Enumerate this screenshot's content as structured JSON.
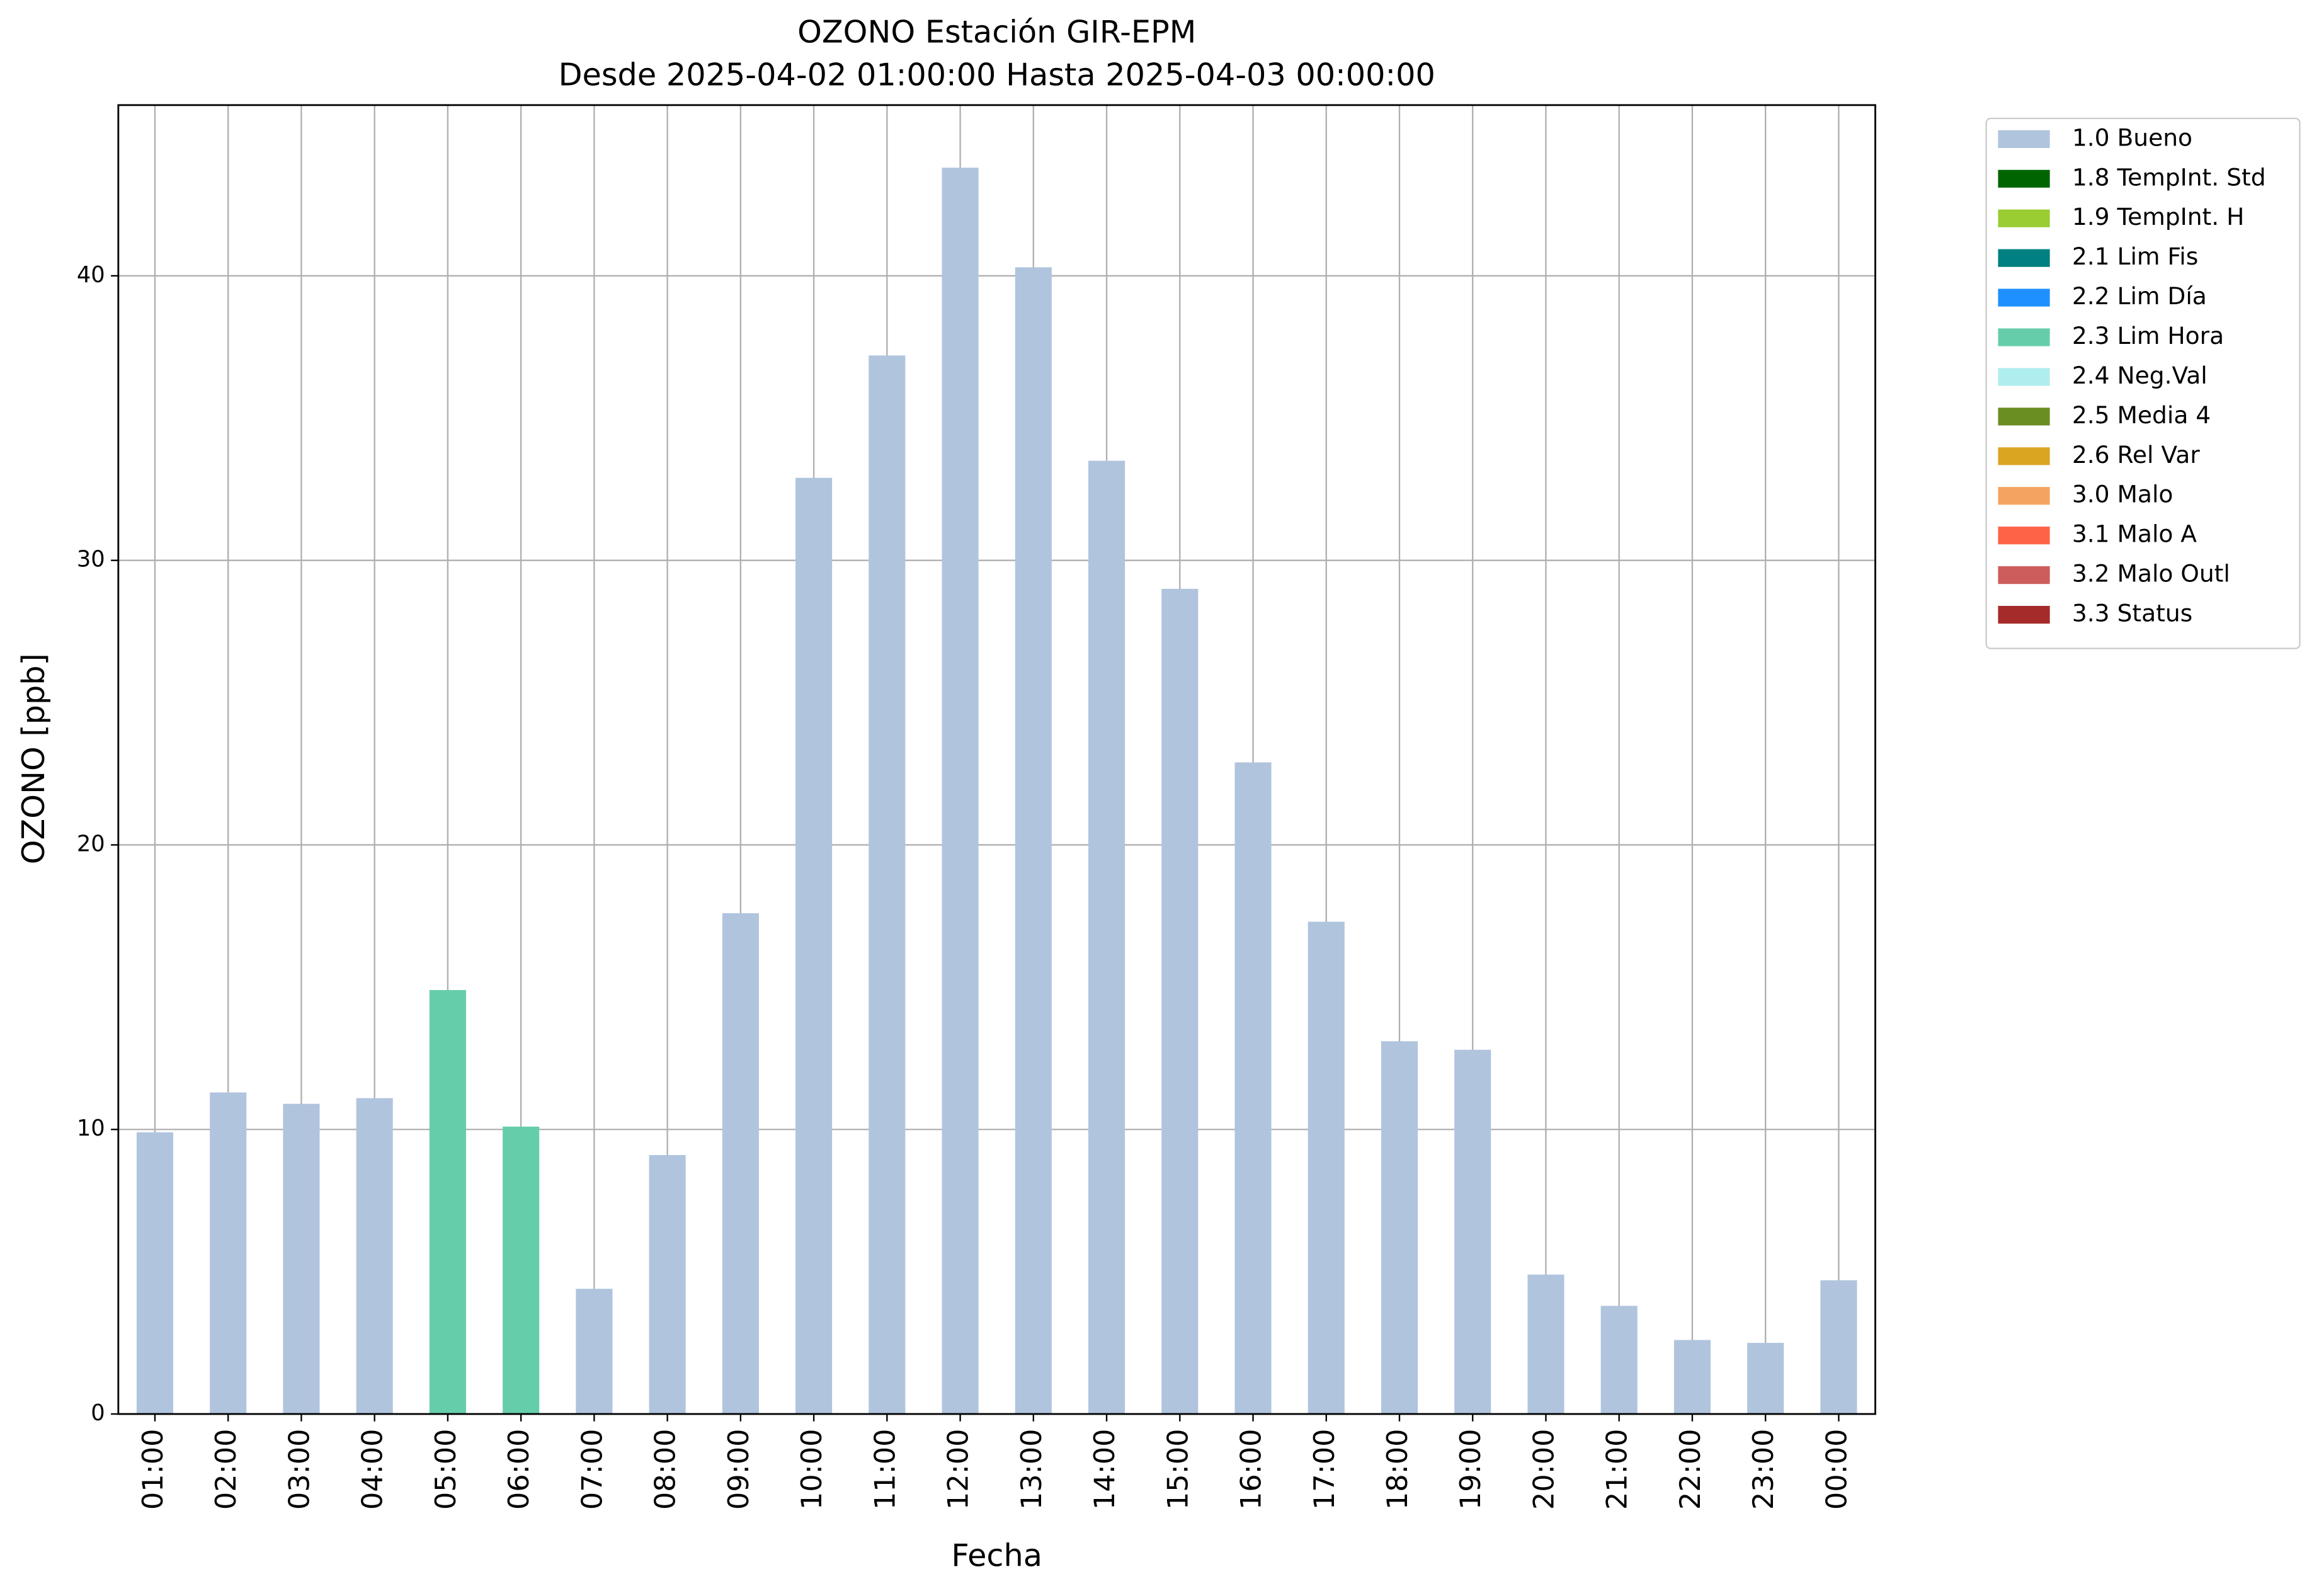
{
  "chart_data": {
    "type": "bar",
    "stacked": true,
    "title": "OZONO Estación GIR-EPM",
    "subtitle": "Desde 2025-04-02 01:00:00 Hasta 2025-04-03 00:00:00",
    "x_label": "Fecha",
    "y_label": "OZONO [ppb]",
    "categories": [
      "01:00",
      "02:00",
      "03:00",
      "04:00",
      "05:00",
      "06:00",
      "07:00",
      "08:00",
      "09:00",
      "10:00",
      "11:00",
      "12:00",
      "13:00",
      "14:00",
      "15:00",
      "16:00",
      "17:00",
      "18:00",
      "19:00",
      "20:00",
      "21:00",
      "22:00",
      "23:00",
      "00:00"
    ],
    "series": [
      {
        "name": "1.0 Bueno",
        "color": "#b0c4de",
        "values": [
          9.9,
          11.3,
          10.9,
          11.1,
          null,
          null,
          4.4,
          9.1,
          17.6,
          32.9,
          37.2,
          43.8,
          40.3,
          33.5,
          29.0,
          22.9,
          17.3,
          13.1,
          12.8,
          4.9,
          3.8,
          2.6,
          2.5,
          4.7
        ]
      },
      {
        "name": "1.8 TempInt. Std",
        "color": "#006400",
        "values": [
          null,
          null,
          null,
          null,
          null,
          null,
          null,
          null,
          null,
          null,
          null,
          null,
          null,
          null,
          null,
          null,
          null,
          null,
          null,
          null,
          null,
          null,
          null,
          null
        ]
      },
      {
        "name": "1.9 TempInt. H",
        "color": "#9acd32",
        "values": [
          null,
          null,
          null,
          null,
          null,
          null,
          null,
          null,
          null,
          null,
          null,
          null,
          null,
          null,
          null,
          null,
          null,
          null,
          null,
          null,
          null,
          null,
          null,
          null
        ]
      },
      {
        "name": "2.1 Lim Fis",
        "color": "#008080",
        "values": [
          null,
          null,
          null,
          null,
          null,
          null,
          null,
          null,
          null,
          null,
          null,
          null,
          null,
          null,
          null,
          null,
          null,
          null,
          null,
          null,
          null,
          null,
          null,
          null
        ]
      },
      {
        "name": "2.2 Lim Día",
        "color": "#1e90ff",
        "values": [
          null,
          null,
          null,
          null,
          null,
          null,
          null,
          null,
          null,
          null,
          null,
          null,
          null,
          null,
          null,
          null,
          null,
          null,
          null,
          null,
          null,
          null,
          null,
          null
        ]
      },
      {
        "name": "2.3 Lim Hora",
        "color": "#66cdaa",
        "values": [
          null,
          null,
          null,
          null,
          14.9,
          10.1,
          null,
          null,
          null,
          null,
          null,
          null,
          null,
          null,
          null,
          null,
          null,
          null,
          null,
          null,
          null,
          null,
          null,
          null
        ]
      },
      {
        "name": "2.4 Neg.Val",
        "color": "#afeeee",
        "values": [
          null,
          null,
          null,
          null,
          null,
          null,
          null,
          null,
          null,
          null,
          null,
          null,
          null,
          null,
          null,
          null,
          null,
          null,
          null,
          null,
          null,
          null,
          null,
          null
        ]
      },
      {
        "name": "2.5 Media 4",
        "color": "#6b8e23",
        "values": [
          null,
          null,
          null,
          null,
          null,
          null,
          null,
          null,
          null,
          null,
          null,
          null,
          null,
          null,
          null,
          null,
          null,
          null,
          null,
          null,
          null,
          null,
          null,
          null
        ]
      },
      {
        "name": "2.6 Rel Var",
        "color": "#daa520",
        "values": [
          null,
          null,
          null,
          null,
          null,
          null,
          null,
          null,
          null,
          null,
          null,
          null,
          null,
          null,
          null,
          null,
          null,
          null,
          null,
          null,
          null,
          null,
          null,
          null
        ]
      },
      {
        "name": "3.0 Malo",
        "color": "#f4a460",
        "values": [
          null,
          null,
          null,
          null,
          null,
          null,
          null,
          null,
          null,
          null,
          null,
          null,
          null,
          null,
          null,
          null,
          null,
          null,
          null,
          null,
          null,
          null,
          null,
          null
        ]
      },
      {
        "name": "3.1 Malo A",
        "color": "#ff6347",
        "values": [
          null,
          null,
          null,
          null,
          null,
          null,
          null,
          null,
          null,
          null,
          null,
          null,
          null,
          null,
          null,
          null,
          null,
          null,
          null,
          null,
          null,
          null,
          null,
          null
        ]
      },
      {
        "name": "3.2 Malo Outl",
        "color": "#cd5c5c",
        "values": [
          null,
          null,
          null,
          null,
          null,
          null,
          null,
          null,
          null,
          null,
          null,
          null,
          null,
          null,
          null,
          null,
          null,
          null,
          null,
          null,
          null,
          null,
          null,
          null
        ]
      },
      {
        "name": "3.3 Status",
        "color": "#a52a2a",
        "values": [
          null,
          null,
          null,
          null,
          null,
          null,
          null,
          null,
          null,
          null,
          null,
          null,
          null,
          null,
          null,
          null,
          null,
          null,
          null,
          null,
          null,
          null,
          null,
          null
        ]
      }
    ],
    "ylim": [
      0,
      46
    ],
    "yticks": [
      0,
      10,
      20,
      30,
      40
    ],
    "grid": true,
    "legend": "right"
  }
}
